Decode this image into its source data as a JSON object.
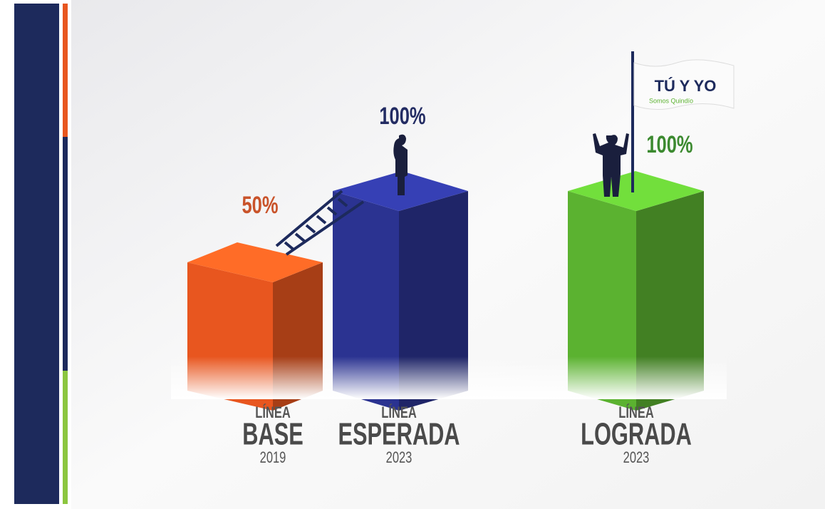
{
  "chart_data": {
    "type": "bar",
    "categories": [
      {
        "prefix": "LÍNEA",
        "name": "BASE",
        "year": "2019"
      },
      {
        "prefix": "LÍNEA",
        "name": "ESPERADA",
        "year": "2023"
      },
      {
        "prefix": "LÍNEA",
        "name": "LOGRADA",
        "year": "2023"
      }
    ],
    "values": [
      50,
      100,
      100
    ],
    "value_labels": [
      "50%",
      "100%",
      "100%"
    ],
    "colors": [
      "#e8561f",
      "#2b3391",
      "#5bb230"
    ],
    "label_colors": [
      "#c9532a",
      "#232c63",
      "#3c8a30"
    ]
  },
  "logo": {
    "title": "TÚ Y YO",
    "subtitle": "Somos Quindío"
  }
}
